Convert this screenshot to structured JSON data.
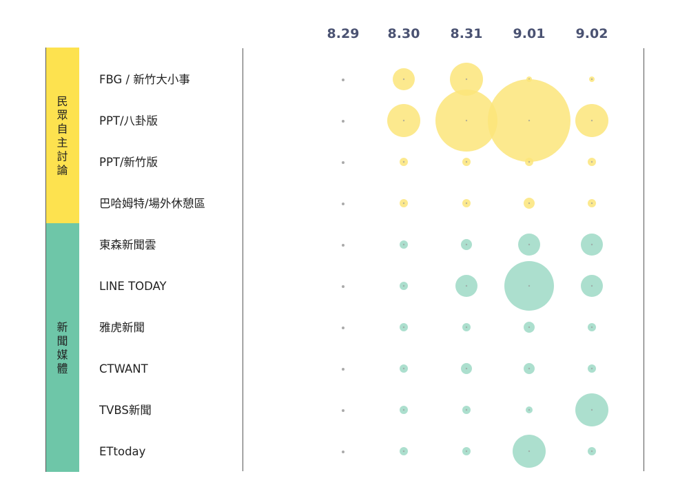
{
  "chart_data": {
    "type": "bubble",
    "dates": [
      "8.29",
      "8.30",
      "8.31",
      "9.01",
      "9.02"
    ],
    "groups": [
      {
        "name": "民眾自主討論",
        "color": "#fde24f",
        "bubble_color": "#fce57a",
        "rows": [
          {
            "label": "FBG / 新竹大小事",
            "values": [
              0,
              16,
              24,
              4,
              4
            ]
          },
          {
            "label": "PPT/八卦版",
            "values": [
              0,
              24,
              45,
              60,
              24
            ]
          },
          {
            "label": "PPT/新竹版",
            "values": [
              0,
              6,
              6,
              6,
              6
            ]
          },
          {
            "label": "巴哈姆特/場外休憩區",
            "values": [
              0,
              6,
              6,
              8,
              6
            ]
          }
        ]
      },
      {
        "name": "新聞媒體",
        "color": "#6ec6a8",
        "bubble_color": "#9ed9c5",
        "rows": [
          {
            "label": "東森新聞雲",
            "values": [
              0,
              6,
              8,
              16,
              16
            ]
          },
          {
            "label": "LINE TODAY",
            "values": [
              0,
              6,
              16,
              36,
              16
            ]
          },
          {
            "label": "雅虎新聞",
            "values": [
              0,
              6,
              6,
              8,
              6
            ]
          },
          {
            "label": "CTWANT",
            "values": [
              0,
              6,
              8,
              8,
              6
            ]
          },
          {
            "label": "TVBS新聞",
            "values": [
              0,
              6,
              6,
              5,
              24
            ]
          },
          {
            "label": "ETtoday",
            "values": [
              0,
              6,
              6,
              24,
              6
            ]
          }
        ]
      }
    ],
    "zero_dot_color": "#aaaaaa"
  }
}
